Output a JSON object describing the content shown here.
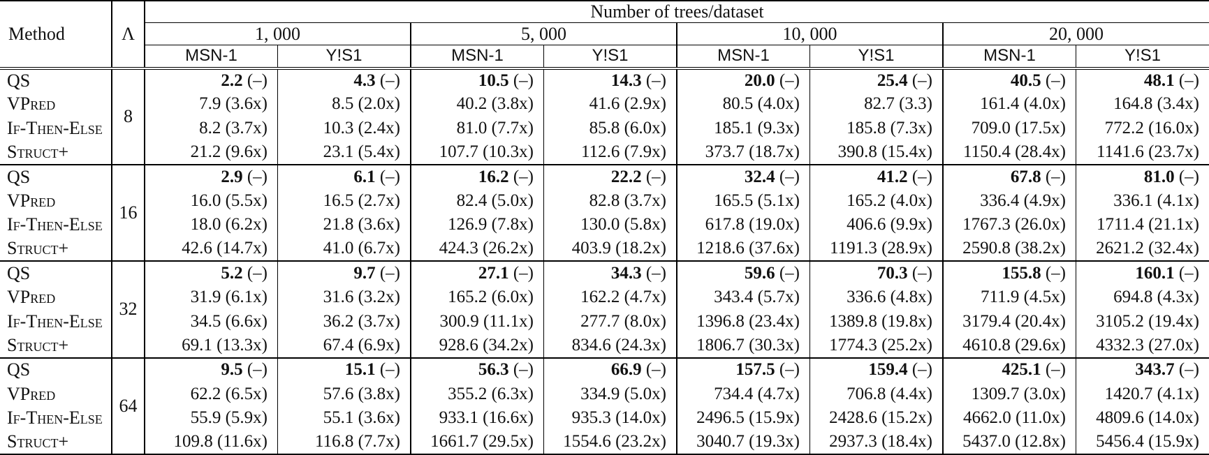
{
  "header": {
    "method": "Method",
    "lambda": "Λ",
    "trees": "Number of trees/dataset",
    "counts": [
      "1, 000",
      "5, 000",
      "10, 000",
      "20, 000"
    ],
    "datasets": [
      "MSN-1",
      "Y!S1"
    ]
  },
  "groups": [
    {
      "lambda": "8",
      "rows": [
        {
          "method": "QS",
          "emph": true,
          "values": [
            "2.2",
            "4.3",
            "10.5",
            "14.3",
            "20.0",
            "25.4",
            "40.5",
            "48.1"
          ],
          "speedups": [
            "(–)",
            "(–)",
            "(–)",
            "(–)",
            "(–)",
            "(–)",
            "(–)",
            "(–)"
          ]
        },
        {
          "method": "VPred",
          "emph": false,
          "values": [
            "7.9",
            "8.5",
            "40.2",
            "41.6",
            "80.5",
            "82.7",
            "161.4",
            "164.8"
          ],
          "speedups": [
            "(3.6x)",
            "(2.0x)",
            "(3.8x)",
            "(2.9x)",
            "(4.0x)",
            "(3.3)",
            "(4.0x)",
            "(3.4x)"
          ]
        },
        {
          "method": "If-Then-Else",
          "emph": false,
          "values": [
            "8.2",
            "10.3",
            "81.0",
            "85.8",
            "185.1",
            "185.8",
            "709.0",
            "772.2"
          ],
          "speedups": [
            "(3.7x)",
            "(2.4x)",
            "(7.7x)",
            "(6.0x)",
            "(9.3x)",
            "(7.3x)",
            "(17.5x)",
            "(16.0x)"
          ]
        },
        {
          "method": "Struct+",
          "emph": false,
          "values": [
            "21.2",
            "23.1",
            "107.7",
            "112.6",
            "373.7",
            "390.8",
            "1150.4",
            "1141.6"
          ],
          "speedups": [
            "(9.6x)",
            "(5.4x)",
            "(10.3x)",
            "(7.9x)",
            "(18.7x)",
            "(15.4x)",
            "(28.4x)",
            "(23.7x)"
          ]
        }
      ]
    },
    {
      "lambda": "16",
      "rows": [
        {
          "method": "QS",
          "emph": true,
          "values": [
            "2.9",
            "6.1",
            "16.2",
            "22.2",
            "32.4",
            "41.2",
            "67.8",
            "81.0"
          ],
          "speedups": [
            "(–)",
            "(–)",
            "(–)",
            "(–)",
            "(–)",
            "(–)",
            "(–)",
            "(–)"
          ]
        },
        {
          "method": "VPred",
          "emph": false,
          "values": [
            "16.0",
            "16.5",
            "82.4",
            "82.8",
            "165.5",
            "165.2",
            "336.4",
            "336.1"
          ],
          "speedups": [
            "(5.5x)",
            "(2.7x)",
            "(5.0x)",
            "(3.7x)",
            "(5.1x)",
            "(4.0x)",
            "(4.9x)",
            "(4.1x)"
          ]
        },
        {
          "method": "If-Then-Else",
          "emph": false,
          "values": [
            "18.0",
            "21.8",
            "126.9",
            "130.0",
            "617.8",
            "406.6",
            "1767.3",
            "1711.4"
          ],
          "speedups": [
            "(6.2x)",
            "(3.6x)",
            "(7.8x)",
            "(5.8x)",
            "(19.0x)",
            "(9.9x)",
            "(26.0x)",
            "(21.1x)"
          ]
        },
        {
          "method": "Struct+",
          "emph": false,
          "values": [
            "42.6",
            "41.0",
            "424.3",
            "403.9",
            "1218.6",
            "1191.3",
            "2590.8",
            "2621.2"
          ],
          "speedups": [
            "(14.7x)",
            "(6.7x)",
            "(26.2x)",
            "(18.2x)",
            "(37.6x)",
            "(28.9x)",
            "(38.2x)",
            "(32.4x)"
          ]
        }
      ]
    },
    {
      "lambda": "32",
      "rows": [
        {
          "method": "QS",
          "emph": true,
          "values": [
            "5.2",
            "9.7",
            "27.1",
            "34.3",
            "59.6",
            "70.3",
            "155.8",
            "160.1"
          ],
          "speedups": [
            "(–)",
            "(–)",
            "(–)",
            "(–)",
            "(–)",
            "(–)",
            "(–)",
            "(–)"
          ]
        },
        {
          "method": "VPred",
          "emph": false,
          "values": [
            "31.9",
            "31.6",
            "165.2",
            "162.2",
            "343.4",
            "336.6",
            "711.9",
            "694.8"
          ],
          "speedups": [
            "(6.1x)",
            "(3.2x)",
            "(6.0x)",
            "(4.7x)",
            "(5.7x)",
            "(4.8x)",
            "(4.5x)",
            "(4.3x)"
          ]
        },
        {
          "method": "If-Then-Else",
          "emph": false,
          "values": [
            "34.5",
            "36.2",
            "300.9",
            "277.7",
            "1396.8",
            "1389.8",
            "3179.4",
            "3105.2"
          ],
          "speedups": [
            "(6.6x)",
            "(3.7x)",
            "(11.1x)",
            "(8.0x)",
            "(23.4x)",
            "(19.8x)",
            "(20.4x)",
            "(19.4x)"
          ]
        },
        {
          "method": "Struct+",
          "emph": false,
          "values": [
            "69.1",
            "67.4",
            "928.6",
            "834.6",
            "1806.7",
            "1774.3",
            "4610.8",
            "4332.3"
          ],
          "speedups": [
            "(13.3x)",
            "(6.9x)",
            "(34.2x)",
            "(24.3x)",
            "(30.3x)",
            "(25.2x)",
            "(29.6x)",
            "(27.0x)"
          ]
        }
      ]
    },
    {
      "lambda": "64",
      "rows": [
        {
          "method": "QS",
          "emph": true,
          "values": [
            "9.5",
            "15.1",
            "56.3",
            "66.9",
            "157.5",
            "159.4",
            "425.1",
            "343.7"
          ],
          "speedups": [
            "(–)",
            "(–)",
            "(–)",
            "(–)",
            "(–)",
            "(–)",
            "(–)",
            "(–)"
          ]
        },
        {
          "method": "VPred",
          "emph": false,
          "values": [
            "62.2",
            "57.6",
            "355.2",
            "334.9",
            "734.4",
            "706.8",
            "1309.7",
            "1420.7"
          ],
          "speedups": [
            "(6.5x)",
            "(3.8x)",
            "(6.3x)",
            "(5.0x)",
            "(4.7x)",
            "(4.4x)",
            "(3.0x)",
            "(4.1x)"
          ]
        },
        {
          "method": "If-Then-Else",
          "emph": false,
          "values": [
            "55.9",
            "55.1",
            "933.1",
            "935.3",
            "2496.5",
            "2428.6",
            "4662.0",
            "4809.6"
          ],
          "speedups": [
            "(5.9x)",
            "(3.6x)",
            "(16.6x)",
            "(14.0x)",
            "(15.9x)",
            "(15.2x)",
            "(11.0x)",
            "(14.0x)"
          ]
        },
        {
          "method": "Struct+",
          "emph": false,
          "values": [
            "109.8",
            "116.8",
            "1661.7",
            "1554.6",
            "3040.7",
            "2937.3",
            "5437.0",
            "5456.4"
          ],
          "speedups": [
            "(11.6x)",
            "(7.7x)",
            "(29.5x)",
            "(23.2x)",
            "(19.3x)",
            "(18.4x)",
            "(12.8x)",
            "(15.9x)"
          ]
        }
      ]
    }
  ]
}
